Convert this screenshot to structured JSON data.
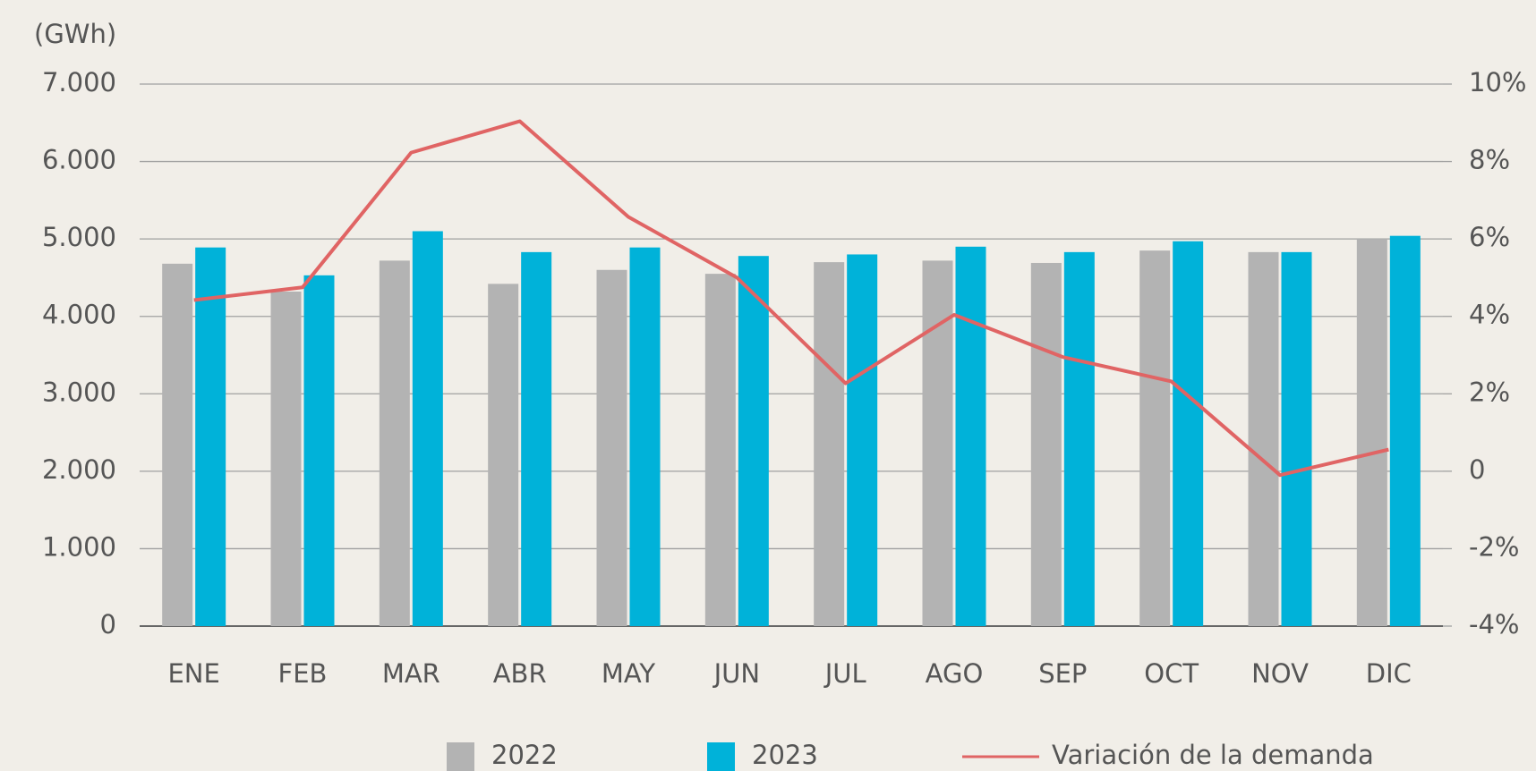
{
  "chart_data": {
    "type": "bar",
    "y_label": "(GWh)",
    "categories": [
      "ENE",
      "FEB",
      "MAR",
      "ABR",
      "MAY",
      "JUN",
      "JUL",
      "AGO",
      "SEP",
      "OCT",
      "NOV",
      "DIC"
    ],
    "series": [
      {
        "name": "2022",
        "color": "#b3b3b3",
        "values": [
          4680,
          4320,
          4720,
          4420,
          4600,
          4550,
          4700,
          4720,
          4690,
          4850,
          4830,
          5000
        ]
      },
      {
        "name": "2023",
        "color": "#00b2d9",
        "values": [
          4890,
          4530,
          5100,
          4830,
          4890,
          4780,
          4800,
          4900,
          4830,
          4970,
          4830,
          5040
        ]
      },
      {
        "name": "Variación de la demanda",
        "type": "line",
        "axis": "y2",
        "color": "#e06464",
        "values": [
          4.42,
          4.75,
          8.23,
          9.04,
          6.57,
          5.0,
          2.27,
          4.04,
          2.95,
          2.32,
          -0.1,
          0.56
        ]
      }
    ],
    "ylim": [
      0,
      7000
    ],
    "yticks": [
      0,
      {
        "value": 1000,
        "label": "1.000"
      },
      {
        "value": 2000,
        "label": "2.000"
      },
      {
        "value": 3000,
        "label": "3.000"
      },
      {
        "value": 4000,
        "label": "4.000"
      },
      {
        "value": 5000,
        "label": "5.000"
      },
      {
        "value": 6000,
        "label": "6.000"
      },
      {
        "value": 7000,
        "label": "7.000"
      }
    ],
    "y2lim": [
      -4,
      10
    ],
    "y2ticks": [
      {
        "value": -4,
        "label": "-4%"
      },
      {
        "value": -2,
        "label": "-2%"
      },
      0,
      {
        "value": 2,
        "label": "2%"
      },
      {
        "value": 4,
        "label": "4%"
      },
      {
        "value": 6,
        "label": "6%"
      },
      {
        "value": 8,
        "label": "8%"
      },
      {
        "value": 10,
        "label": "10%"
      }
    ],
    "grid": true,
    "legend": "bottom"
  }
}
